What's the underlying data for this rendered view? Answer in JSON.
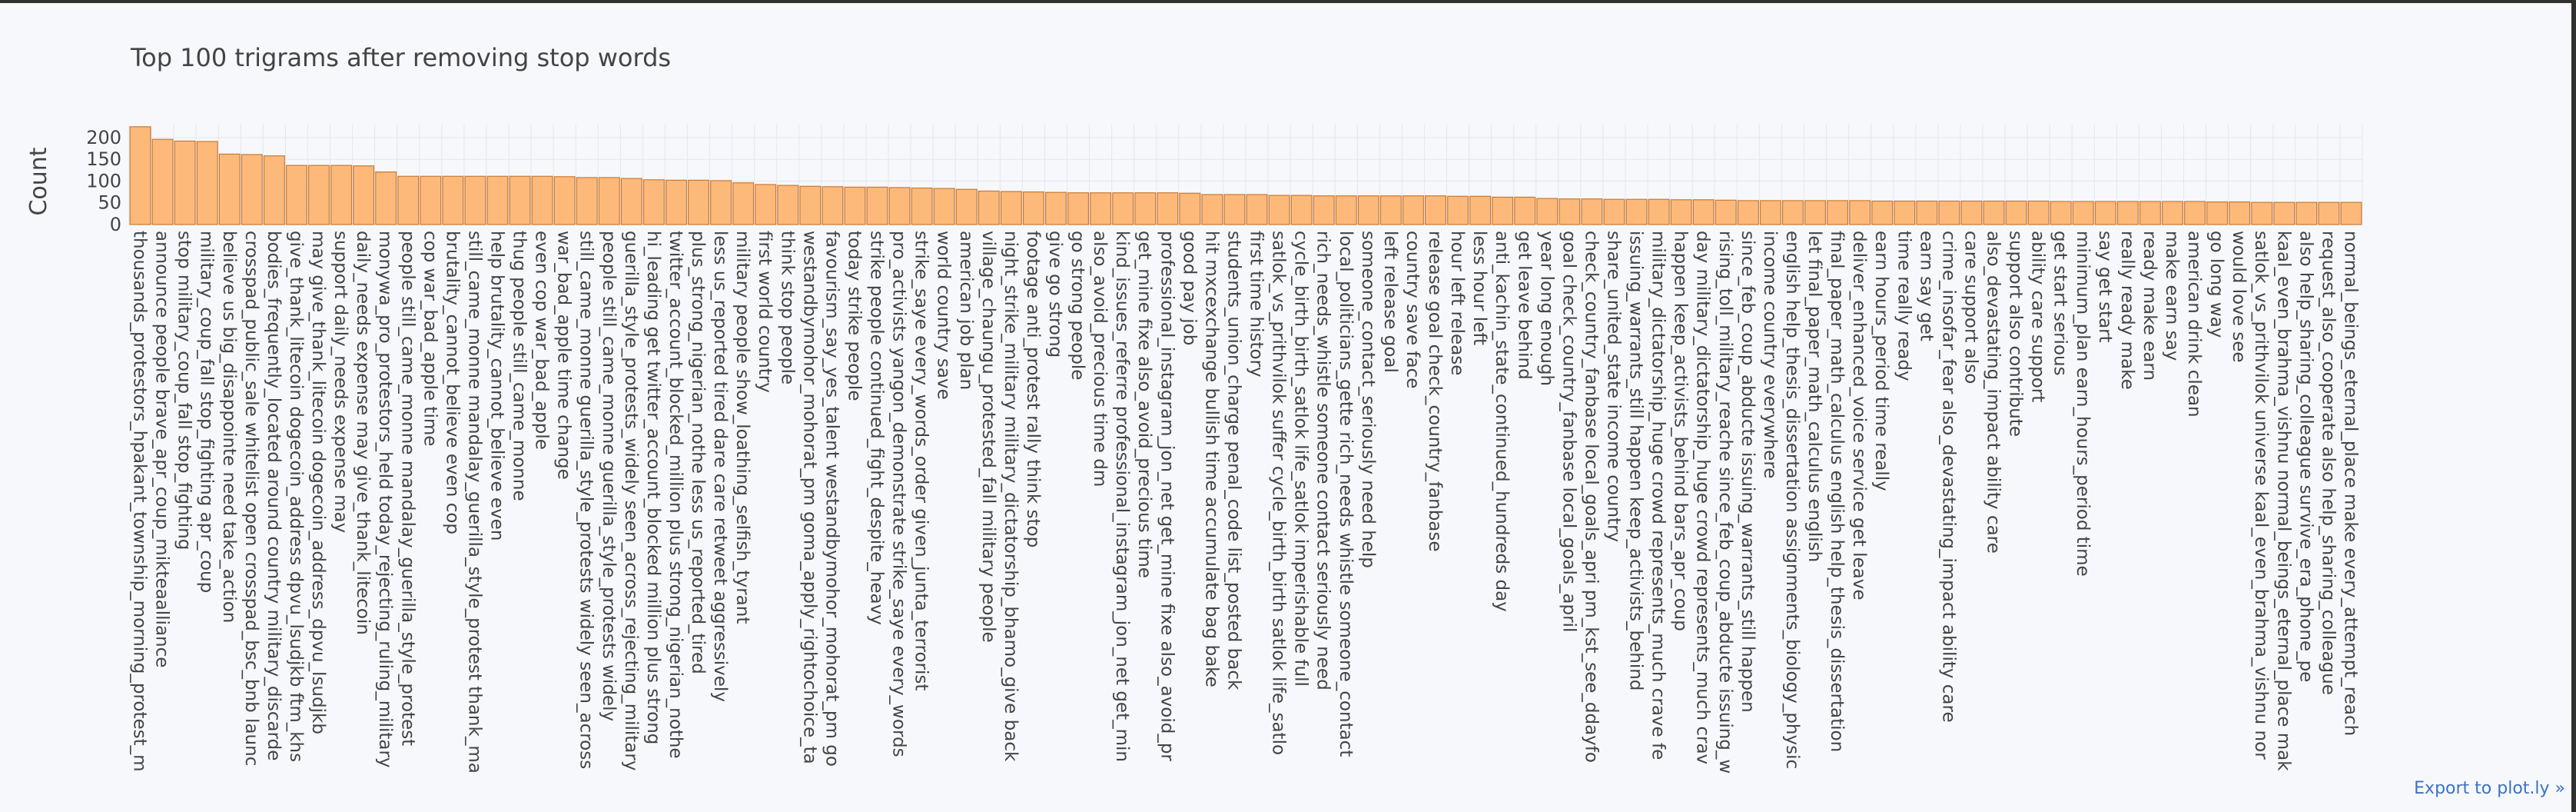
{
  "export_link": "Export to plot.ly »",
  "chart_data": {
    "type": "bar",
    "title": "Top 100 trigrams after removing stop words",
    "xlabel": "",
    "ylabel": "Count",
    "ylim": [
      0,
      230
    ],
    "yticks": [
      0,
      50,
      100,
      150,
      200
    ],
    "grid": true,
    "bar_color": "#fdb97a",
    "bar_edge_color": "#c97a33",
    "categories": [
      "thousands_protestors_hpakant_township_morning_protest_m",
      "announce people brave_apr_coup_mikteaalliance",
      "stop military_coup_fall stop_fighting",
      "military_coup_fall stop_fighting apr_coup",
      "believe us big_disappointe need take_action",
      "crosspad_public_sale whitelist open crosspad_bsc_bnb launc",
      "bodies_frequently_located around country military_discarde",
      "give_thank_litecoin dogecoin_address dpvu_lsudjkb ftm_khs",
      "may give_thank_litecoin dogecoin_address_dpvu_lsudjkb",
      "support daily_needs expense may",
      "daily_needs expense may give_thank_litecoin",
      "monywa_pro_protestors_held today_rejecting_ruling_military",
      "people still_came_monne mandalay_guerilla_style_protest",
      "cop war_bad_apple time",
      "brutality_cannot_believe even cop",
      "still_came_monne mandalay_guerilla_style_protest thank_ma",
      "help brutality_cannot_believe even",
      "thug people still_came_monne",
      "even cop war_bad_apple",
      "war_bad_apple time change",
      "still_came_monne guerilla_style_protests widely seen_across",
      "people still_came_monne guerilla_style_protests widely",
      "guerilla_style_protests_widely seen_across_rejecting_military",
      "hi_leading get twitter_account_blocked million plus strong",
      "twitter_account_blocked_million plus strong_nigerian_nothe",
      "plus_strong_nigerian_nothe less us_reported_tired",
      "less us_reported tired dare care retweet aggressively",
      "military people show_loathing_selfish_tyrant",
      "first world country",
      "think stop people",
      "westandbymohor_mohorat_pm goma_apply_rightochoice_ta",
      "favourism_say_yes_talent westandbymohor_mohorat_pm go",
      "today strike people",
      "strike people continued_fight_despite_heavy",
      "pro_activists yangon_demonstrate strike_saye every_words",
      "strike_saye every_words_order given_junta_terrorist",
      "world country save",
      "american job plan",
      "village_chaungu_protested_fall military people",
      "night_strike_military military_dictatorship_bhamo_give back",
      "footage anti_protest rally think stop",
      "give go strong",
      "go strong people",
      "also_avoid_precious time dm",
      "kind_issues_referre professional_instagram_jon_net get_min",
      "get_mine fixe also_avoid_precious time",
      "professional_instagram_jon_net get_mine fixe also_avoid_pr",
      "good pay job",
      "hit mxcexchange bullish time accumulate bag bake",
      "students_union_charge penal_code list_posted back",
      "first time history",
      "satlok_vs_prithvilok suffer cycle_birth_birth satlok life_satlo",
      "cycle_birth_birth_satlok life_satlok imperishable full",
      "rich_needs_whistle someone contact seriously need",
      "local_politicians_gette rich_needs whistle someone_contact",
      "someone_contact_seriously need help",
      "left release goal",
      "country save face",
      "release goal check_country_fanbase",
      "hour left release",
      "less hour left",
      "anti_kachin_state_continued_hundreds day",
      "get leave behind",
      "year long enough",
      "goal check_country_fanbase local_goals_april",
      "check_country_fanbase local_goals_apri pm_kst_see_ddayfo",
      "share_united_state income country",
      "issuing_warrants_still happen keep_activists_behind",
      "military_dictatorship_huge crowd represents_much crave fe",
      "happen keep_activists_behind bars_apr_coup",
      "day military_dictatorship_huge crowd represents_much crav",
      "rising_toll_military_reache since_feb_coup_abducte issuing_w",
      "since_feb_coup_abducte issuing_warrants_still happen",
      "income country everywhere",
      "english help_thesis_dissertation assignments_biology_physic",
      "let final_paper_math_calculus english",
      "final_paper_math_calculus english help_thesis_dissertation",
      "deliver_enhanced_voice service get leave",
      "earn hours_period time really",
      "time really ready",
      "earn say get",
      "crime_insofar_fear also_devastating_impact ability care",
      "care support also",
      "also_devastating_impact ability care",
      "support also contribute",
      "ability care support",
      "get start serious",
      "minimum_plan earn_hours_period time",
      "say get start",
      "really ready make",
      "ready make earn",
      "make earn say",
      "american drink clean",
      "go long way",
      "would love see",
      "satlok_vs_prithvilok universe kaal_even_brahma_vishnu nor",
      "kaal_even_brahma_vishnu normal_beings_eternal_place mak",
      "also help_sharing_colleague survive_era_phone_pe",
      "request_also_cooperate also help_sharing_colleague",
      "normal_beings_eternal_place make every_attempt_reach"
    ],
    "values": [
      225,
      196,
      192,
      191,
      162,
      161,
      158,
      136,
      136,
      136,
      135,
      121,
      111,
      111,
      111,
      111,
      111,
      111,
      111,
      110,
      108,
      108,
      106,
      103,
      102,
      102,
      101,
      96,
      92,
      90,
      88,
      87,
      86,
      86,
      85,
      84,
      83,
      81,
      77,
      76,
      75,
      74,
      73,
      73,
      73,
      73,
      73,
      72,
      69,
      69,
      69,
      67,
      67,
      66,
      66,
      66,
      66,
      66,
      66,
      65,
      65,
      63,
      63,
      60,
      59,
      59,
      58,
      58,
      58,
      57,
      57,
      56,
      55,
      55,
      55,
      55,
      55,
      55,
      54,
      54,
      54,
      54,
      54,
      54,
      54,
      54,
      53,
      53,
      53,
      53,
      53,
      53,
      53,
      52,
      52,
      51,
      51,
      51,
      51,
      51
    ]
  }
}
